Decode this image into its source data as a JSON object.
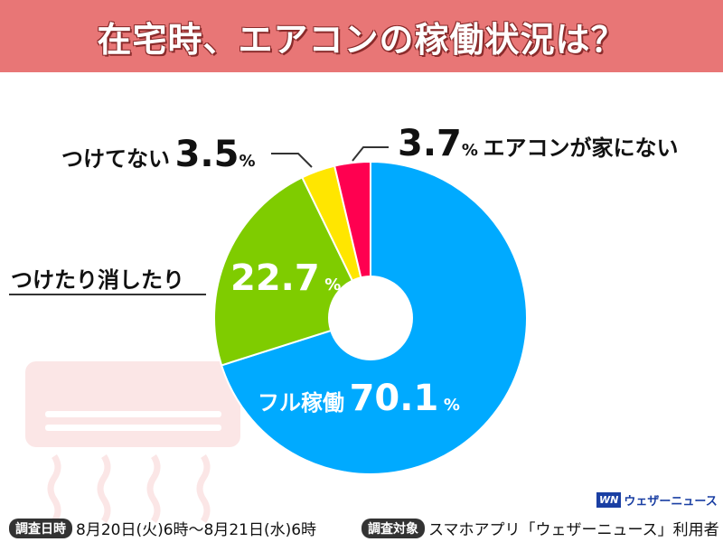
{
  "title": "在宅時、エアコンの稼働状況は？",
  "chart_data": {
    "type": "pie",
    "title": "在宅時、エアコンの稼働状況は？",
    "categories": [
      "フル稼働",
      "つけたり消したり",
      "つけてない",
      "エアコンが家にない"
    ],
    "values": [
      70.1,
      22.7,
      3.5,
      3.7
    ],
    "value_labels": [
      "70.1",
      "22.7",
      "3.5",
      "3.7"
    ],
    "unit": "%",
    "colors": [
      "#00aaff",
      "#7fcc00",
      "#ffe600",
      "#ff0050"
    ]
  },
  "footer": {
    "date_badge": "調査日時",
    "date_text": "8月20日(火)6時〜8月21日(水)6時",
    "target_badge": "調査対象",
    "target_text": "スマホアプリ「ウェザーニュース」利用者"
  },
  "logo": {
    "mark": "WN",
    "name": "ウェザーニュース"
  }
}
